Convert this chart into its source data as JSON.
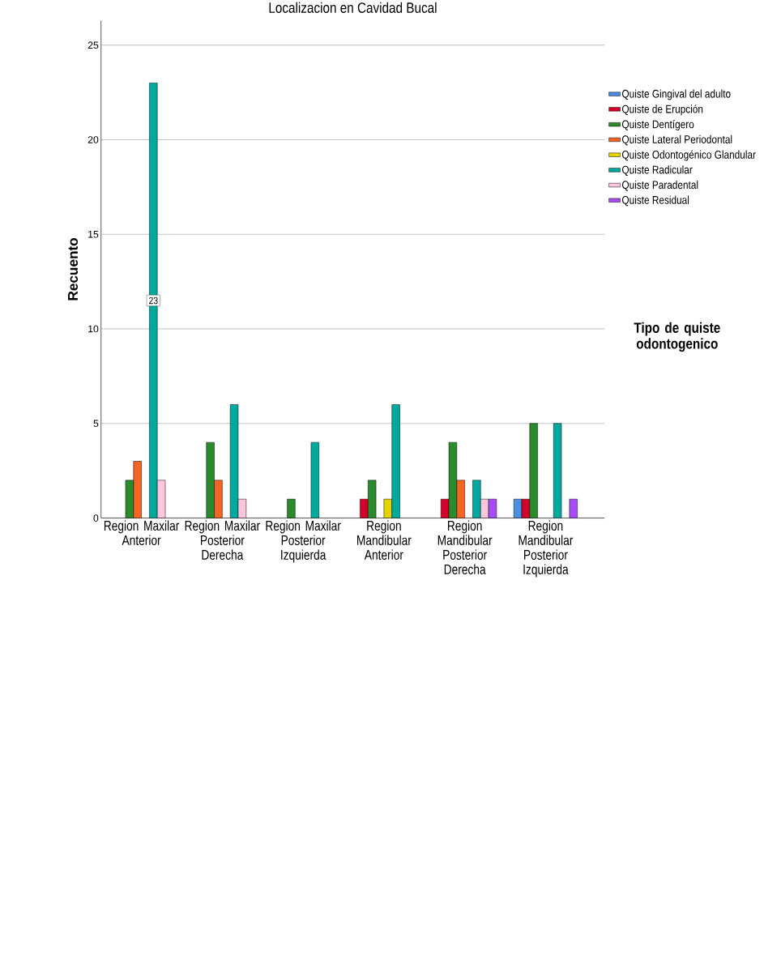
{
  "chart_data": {
    "type": "bar",
    "title": "Localizacion en Cavidad Bucal",
    "ylabel": "Recuento",
    "legend_title": "Tipo de quiste odontogenico",
    "categories": [
      "Region Maxilar Anterior",
      "Region Maxilar Posterior Derecha",
      "Region Maxilar Posterior Izquierda",
      "Region Mandibular Anterior",
      "Region Mandibular Posterior Derecha",
      "Region Mandibular Posterior Izquierda"
    ],
    "series": [
      {
        "name": "Quiste Gingival del adulto",
        "color": "#4a8fe0",
        "values": [
          null,
          null,
          null,
          null,
          null,
          1
        ]
      },
      {
        "name": "Quiste de Erupción",
        "color": "#d5002a",
        "values": [
          null,
          null,
          null,
          1,
          1,
          1
        ]
      },
      {
        "name": "Quiste Dentígero",
        "color": "#2b8a2b",
        "values": [
          2,
          4,
          1,
          2,
          4,
          5
        ]
      },
      {
        "name": "Quiste Lateral Periodontal",
        "color": "#f26522",
        "values": [
          3,
          2,
          null,
          null,
          2,
          null
        ]
      },
      {
        "name": "Quiste Odontogénico Glandular",
        "color": "#e3d400",
        "values": [
          null,
          null,
          null,
          1,
          null,
          null
        ]
      },
      {
        "name": "Quiste Radicular",
        "color": "#00a99d",
        "values": [
          23,
          6,
          4,
          6,
          2,
          5
        ],
        "value_labels": [
          "23",
          null,
          null,
          null,
          null,
          null
        ]
      },
      {
        "name": "Quiste Paradental",
        "color": "#fcc6dc",
        "values": [
          2,
          1,
          null,
          null,
          1,
          null
        ]
      },
      {
        "name": "Quiste Residual",
        "color": "#a64df5",
        "values": [
          null,
          null,
          null,
          null,
          1,
          1
        ]
      }
    ],
    "ylim": [
      0,
      26.3
    ],
    "yticks": [
      0,
      5,
      10,
      15,
      20,
      25
    ],
    "grid": "y",
    "legend": "right"
  }
}
